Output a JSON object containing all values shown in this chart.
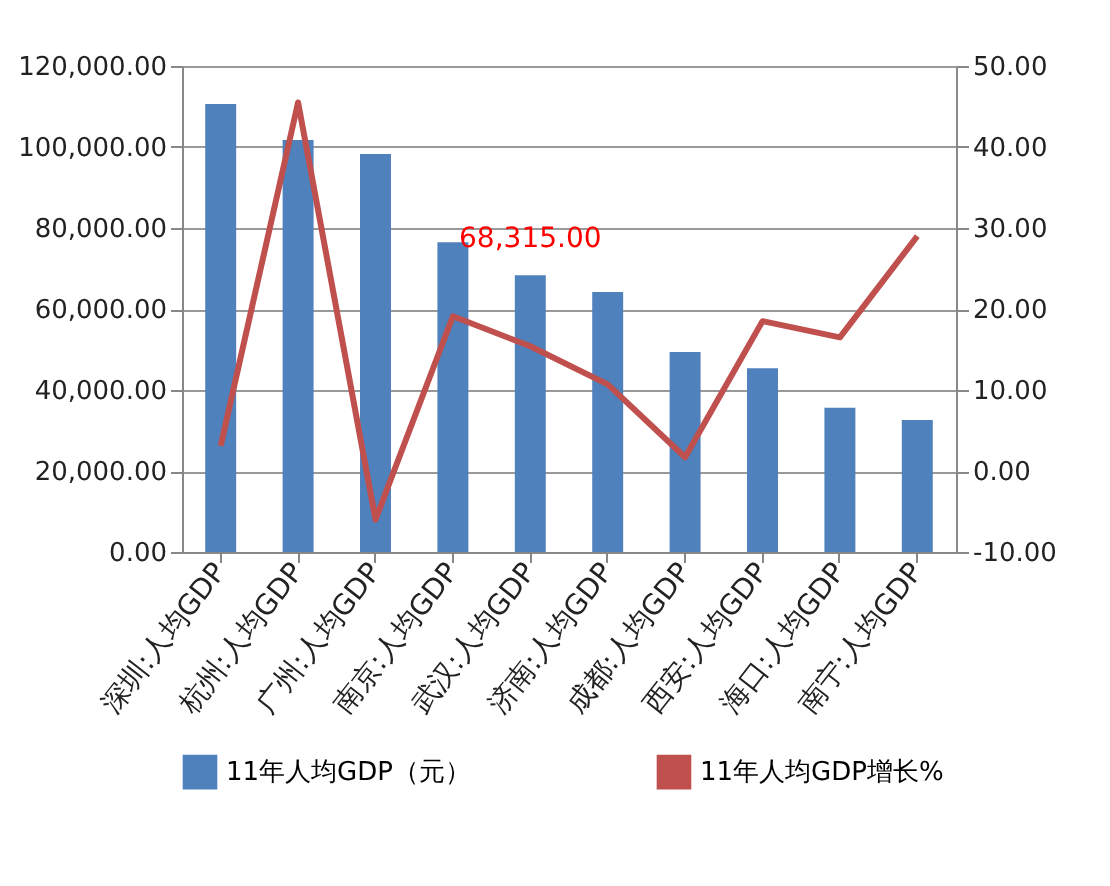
{
  "chart_data": {
    "type": "bar",
    "categories": [
      "深圳:人均GDP",
      "杭州:人均GDP",
      "广州:人均GDP",
      "南京:人均GDP",
      "武汉:人均GDP",
      "济南:人均GDP",
      "成都:人均GDP",
      "西安:人均GDP",
      "海口:人均GDP",
      "南宁:人均GDP"
    ],
    "series": [
      {
        "name": "11年人均GDP（元）",
        "color": "#4f81bd",
        "values": [
          110600,
          101700,
          98300,
          76500,
          68315,
          64200,
          49400,
          45400,
          35600,
          32600
        ],
        "value_labels": [
          null,
          null,
          null,
          null,
          "68,315.00",
          null,
          null,
          null,
          null,
          null
        ]
      },
      {
        "name": "11年人均GDP增长%",
        "type": "line",
        "axis": "y2",
        "color": "#c0504d",
        "values": [
          3.1,
          45.5,
          -6,
          19.1,
          15.4,
          10.7,
          1.7,
          18.5,
          16.5,
          29
        ]
      }
    ],
    "ylim": [
      0,
      120000
    ],
    "yticks": [
      {
        "value": 0,
        "label": "0.00"
      },
      {
        "value": 20000,
        "label": "20,000.00"
      },
      {
        "value": 40000,
        "label": "40,000.00"
      },
      {
        "value": 60000,
        "label": "60,000.00"
      },
      {
        "value": 80000,
        "label": "80,000.00"
      },
      {
        "value": 100000,
        "label": "100,000.00"
      },
      {
        "value": 120000,
        "label": "120,000.00"
      }
    ],
    "y2lim": [
      -10,
      50
    ],
    "y2ticks": [
      {
        "value": -10,
        "label": "-10.00"
      },
      {
        "value": 0,
        "label": "0.00"
      },
      {
        "value": 10,
        "label": "10.00"
      },
      {
        "value": 20,
        "label": "20.00"
      },
      {
        "value": 30,
        "label": "30.00"
      },
      {
        "value": 40,
        "label": "40.00"
      },
      {
        "value": 50,
        "label": "50.00"
      }
    ],
    "grid": "y",
    "legend": "bottom"
  }
}
